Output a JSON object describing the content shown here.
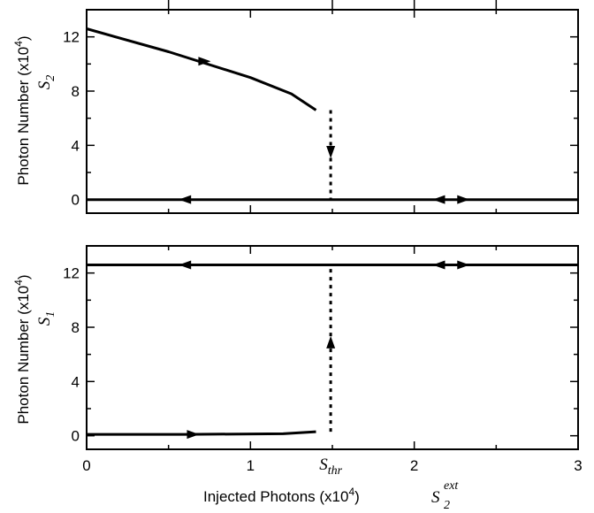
{
  "chart_data": [
    {
      "type": "line",
      "panel": "top",
      "ylabel": "Photon Number (x10",
      "ylabel_exponent": "4",
      "ylabel_suffix": ")",
      "ylabel_symbol": "S",
      "ylabel_symbol_sub": "2",
      "xlim": [
        0,
        3
      ],
      "ylim": [
        -1,
        14
      ],
      "yticks": [
        0,
        4,
        8,
        12
      ],
      "ytick_labels": [
        "0",
        "4",
        "8",
        "12"
      ],
      "xticks": [
        0,
        1,
        2,
        3
      ],
      "grid": false,
      "series": [
        {
          "style": "solid",
          "x": [
            0,
            0.5,
            1.0,
            1.25,
            1.4
          ],
          "y": [
            12.6,
            10.9,
            9.0,
            7.8,
            6.6
          ]
        },
        {
          "style": "solid",
          "x": [
            0,
            3
          ],
          "y": [
            0,
            0
          ]
        },
        {
          "style": "dotted",
          "x": [
            1.49,
            1.49
          ],
          "y": [
            6.6,
            0
          ]
        }
      ],
      "arrows": [
        {
          "x": 0.72,
          "y": 10.2,
          "direction": "right"
        },
        {
          "x": 0.6,
          "y": 0,
          "direction": "left"
        },
        {
          "x": 2.15,
          "y": 0,
          "direction": "left"
        },
        {
          "x": 2.3,
          "y": 0,
          "direction": "right"
        },
        {
          "x": 1.49,
          "y": 3.5,
          "direction": "down"
        }
      ]
    },
    {
      "type": "line",
      "panel": "bottom",
      "ylabel": "Photon Number (x10",
      "ylabel_exponent": "4",
      "ylabel_suffix": ")",
      "ylabel_symbol": "S",
      "ylabel_symbol_sub": "1",
      "xlabel": "Injected Photons (x10",
      "xlabel_exponent": "4",
      "xlabel_suffix": ")",
      "xlabel_symbol": "S",
      "xlabel_symbol_sub": "2",
      "xlabel_symbol_sup": "ext",
      "xlim": [
        0,
        3
      ],
      "ylim": [
        -1,
        14
      ],
      "yticks": [
        0,
        4,
        8,
        12
      ],
      "ytick_labels": [
        "0",
        "4",
        "8",
        "12"
      ],
      "xticks": [
        0,
        1,
        2,
        3
      ],
      "xtick_labels": [
        "0",
        "1",
        "2",
        "3"
      ],
      "threshold_x": 1.49,
      "threshold_label": "S",
      "threshold_label_sub": "thr",
      "grid": false,
      "series": [
        {
          "style": "solid",
          "x": [
            0,
            3
          ],
          "y": [
            12.6,
            12.6
          ]
        },
        {
          "style": "solid",
          "x": [
            0,
            0.6,
            1.2,
            1.4
          ],
          "y": [
            0.1,
            0.1,
            0.15,
            0.3
          ]
        },
        {
          "style": "dotted",
          "x": [
            1.49,
            1.49
          ],
          "y": [
            0.3,
            12.6
          ]
        }
      ],
      "arrows": [
        {
          "x": 0.6,
          "y": 12.6,
          "direction": "left"
        },
        {
          "x": 2.15,
          "y": 12.6,
          "direction": "left"
        },
        {
          "x": 2.3,
          "y": 12.6,
          "direction": "right"
        },
        {
          "x": 0.65,
          "y": 0.1,
          "direction": "right"
        },
        {
          "x": 1.49,
          "y": 6.9,
          "direction": "up"
        }
      ]
    }
  ]
}
